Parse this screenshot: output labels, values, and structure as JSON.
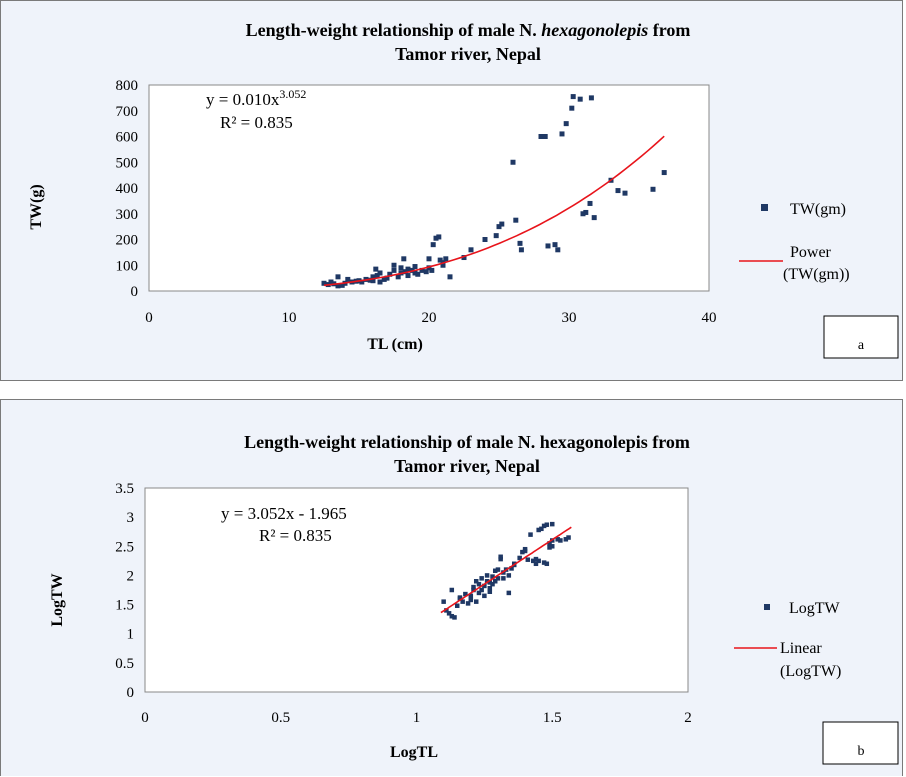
{
  "chart_data": [
    {
      "type": "scatter",
      "panel_tag": "a",
      "title_line1": "Length-weight relationship of male N. ",
      "title_italic": "hexagonolepis",
      "title_line1_end": " from",
      "title_line2": "Tamor river, Nepal",
      "xlabel": "TL (cm)",
      "ylabel": "TW(g)",
      "xlim": [
        0,
        40
      ],
      "ylim": [
        0,
        800
      ],
      "xticks": [
        "0",
        "10",
        "20",
        "30",
        "40"
      ],
      "yticks": [
        "0",
        "100",
        "200",
        "300",
        "400",
        "500",
        "600",
        "700",
        "800"
      ],
      "equation_main": "y = 0.010x",
      "equation_exp": "3.052",
      "r2": "R² = 0.835",
      "point_color": "#1f3864",
      "trend_color": "#e8141b",
      "series": [
        {
          "name": "TW(gm)",
          "points": [
            [
              12.5,
              30
            ],
            [
              12.8,
              25
            ],
            [
              13,
              35
            ],
            [
              13.2,
              28
            ],
            [
              13.5,
              55
            ],
            [
              13.5,
              20
            ],
            [
              13.8,
              22
            ],
            [
              14,
              30
            ],
            [
              14.2,
              45
            ],
            [
              14.5,
              35
            ],
            [
              14.8,
              38
            ],
            [
              15,
              40
            ],
            [
              15.2,
              35
            ],
            [
              15.5,
              45
            ],
            [
              15.8,
              42
            ],
            [
              16,
              40
            ],
            [
              16,
              55
            ],
            [
              16.2,
              85
            ],
            [
              16.3,
              60
            ],
            [
              16.5,
              70
            ],
            [
              16.5,
              35
            ],
            [
              16.8,
              45
            ],
            [
              17,
              50
            ],
            [
              17.2,
              65
            ],
            [
              17.5,
              80
            ],
            [
              17.5,
              100
            ],
            [
              17.8,
              55
            ],
            [
              18,
              70
            ],
            [
              18,
              90
            ],
            [
              18.2,
              125
            ],
            [
              18.3,
              75
            ],
            [
              18.5,
              60
            ],
            [
              18.5,
              85
            ],
            [
              18.8,
              80
            ],
            [
              19,
              95
            ],
            [
              19,
              70
            ],
            [
              19.2,
              65
            ],
            [
              19.5,
              80
            ],
            [
              19.8,
              75
            ],
            [
              20,
              125
            ],
            [
              20,
              90
            ],
            [
              20.2,
              80
            ],
            [
              20.3,
              180
            ],
            [
              20.5,
              205
            ],
            [
              20.7,
              210
            ],
            [
              20.8,
              120
            ],
            [
              21,
              110
            ],
            [
              21,
              100
            ],
            [
              21.2,
              125
            ],
            [
              21.5,
              55
            ],
            [
              22.5,
              130
            ],
            [
              23,
              160
            ],
            [
              24,
              200
            ],
            [
              24.8,
              215
            ],
            [
              25,
              250
            ],
            [
              25.2,
              260
            ],
            [
              26,
              500
            ],
            [
              26.2,
              275
            ],
            [
              26.5,
              185
            ],
            [
              26.6,
              160
            ],
            [
              28,
              600
            ],
            [
              28.3,
              600
            ],
            [
              28.5,
              175
            ],
            [
              29,
              180
            ],
            [
              29.2,
              160
            ],
            [
              29.5,
              610
            ],
            [
              29.8,
              650
            ],
            [
              30.2,
              710
            ],
            [
              30.3,
              755
            ],
            [
              30.8,
              745
            ],
            [
              31,
              300
            ],
            [
              31.2,
              305
            ],
            [
              31.5,
              340
            ],
            [
              31.6,
              750
            ],
            [
              31.8,
              285
            ],
            [
              33,
              430
            ],
            [
              33.5,
              390
            ],
            [
              34,
              380
            ],
            [
              36,
              395
            ],
            [
              36.8,
              460
            ]
          ]
        },
        {
          "name": "Power (TW(gm))",
          "trend": "power",
          "coef": 0.01,
          "exp": 3.052,
          "x_range": [
            12.5,
            36.8
          ]
        }
      ]
    },
    {
      "type": "scatter",
      "panel_tag": "b",
      "title_line1": "Length-weight relationship of male N. hexagonolepis from",
      "title_line2": "Tamor river, Nepal",
      "xlabel": "LogTL",
      "ylabel": "LogTW",
      "xlim": [
        0,
        2
      ],
      "ylim": [
        0,
        3.5
      ],
      "xticks": [
        "0",
        "0.5",
        "1",
        "1.5",
        "2"
      ],
      "yticks": [
        "0",
        "0.5",
        "1",
        "1.5",
        "2",
        "2.5",
        "3",
        "3.5"
      ],
      "equation_main": "y = 3.052x - 1.965",
      "r2": "R² = 0.835",
      "point_color": "#1f3864",
      "trend_color": "#e8141b",
      "series": [
        {
          "name": "LogTW",
          "points": [
            [
              1.1,
              1.55
            ],
            [
              1.11,
              1.4
            ],
            [
              1.12,
              1.35
            ],
            [
              1.13,
              1.3
            ],
            [
              1.13,
              1.75
            ],
            [
              1.14,
              1.28
            ],
            [
              1.15,
              1.48
            ],
            [
              1.16,
              1.6
            ],
            [
              1.17,
              1.55
            ],
            [
              1.18,
              1.68
            ],
            [
              1.19,
              1.52
            ],
            [
              1.2,
              1.65
            ],
            [
              1.2,
              1.58
            ],
            [
              1.21,
              1.75
            ],
            [
              1.21,
              1.8
            ],
            [
              1.22,
              1.55
            ],
            [
              1.22,
              1.9
            ],
            [
              1.23,
              1.7
            ],
            [
              1.23,
              1.85
            ],
            [
              1.24,
              1.75
            ],
            [
              1.24,
              1.95
            ],
            [
              1.25,
              1.82
            ],
            [
              1.25,
              1.65
            ],
            [
              1.26,
              2.0
            ],
            [
              1.26,
              1.9
            ],
            [
              1.27,
              1.78
            ],
            [
              1.27,
              1.88
            ],
            [
              1.28,
              1.85
            ],
            [
              1.28,
              1.98
            ],
            [
              1.29,
              1.9
            ],
            [
              1.29,
              2.08
            ],
            [
              1.3,
              1.95
            ],
            [
              1.3,
              2.1
            ],
            [
              1.31,
              2.28
            ],
            [
              1.31,
              2.32
            ],
            [
              1.32,
              2.05
            ],
            [
              1.32,
              1.95
            ],
            [
              1.33,
              2.1
            ],
            [
              1.34,
              2.0
            ],
            [
              1.34,
              1.7
            ],
            [
              1.35,
              2.12
            ],
            [
              1.36,
              2.2
            ],
            [
              1.38,
              2.3
            ],
            [
              1.39,
              2.4
            ],
            [
              1.4,
              2.45
            ],
            [
              1.4,
              2.42
            ],
            [
              1.41,
              2.27
            ],
            [
              1.42,
              2.7
            ],
            [
              1.43,
              2.25
            ],
            [
              1.44,
              2.2
            ],
            [
              1.45,
              2.78
            ],
            [
              1.45,
              2.25
            ],
            [
              1.46,
              2.8
            ],
            [
              1.47,
              2.22
            ],
            [
              1.47,
              2.85
            ],
            [
              1.48,
              2.87
            ],
            [
              1.49,
              2.55
            ],
            [
              1.49,
              2.48
            ],
            [
              1.5,
              2.88
            ],
            [
              1.5,
              2.6
            ],
            [
              1.52,
              2.62
            ],
            [
              1.53,
              2.6
            ],
            [
              1.55,
              2.62
            ],
            [
              1.56,
              2.65
            ],
            [
              1.5,
              2.5
            ],
            [
              1.48,
              2.2
            ],
            [
              1.44,
              2.28
            ],
            [
              1.36,
              2.18
            ],
            [
              1.27,
              1.72
            ],
            [
              1.16,
              1.62
            ]
          ]
        },
        {
          "name": "Linear (LogTW)",
          "trend": "linear",
          "slope": 3.052,
          "intercept": -1.965,
          "x_range": [
            1.09,
            1.57
          ]
        }
      ]
    }
  ]
}
